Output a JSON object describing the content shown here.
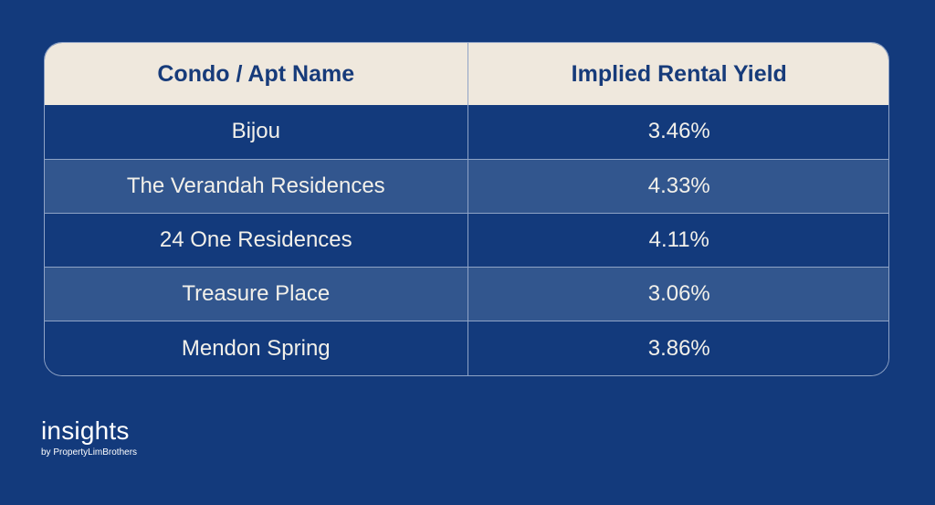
{
  "table": {
    "headers": [
      "Condo / Apt Name",
      "Implied Rental Yield"
    ],
    "rows": [
      {
        "name": "Bijou",
        "yield": "3.46%"
      },
      {
        "name": "The Verandah Residences",
        "yield": "4.33%"
      },
      {
        "name": "24 One Residences",
        "yield": "4.11%"
      },
      {
        "name": "Treasure Place",
        "yield": "3.06%"
      },
      {
        "name": "Mendon Spring",
        "yield": "3.86%"
      }
    ]
  },
  "logo": {
    "word": "insights",
    "tagline": "by PropertyLimBrothers"
  },
  "colors": {
    "background": "#133a7c",
    "header_background": "#efe8dd",
    "header_text": "#173b7a",
    "row_alt": "#32568e",
    "body_text": "#f2f0ea"
  }
}
